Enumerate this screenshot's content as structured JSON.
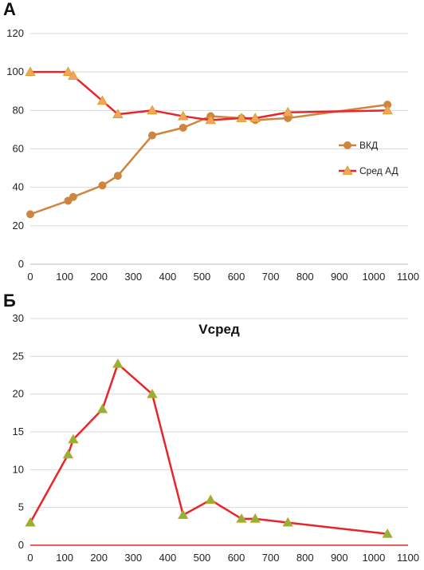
{
  "panel_labels": [
    "А",
    "Б"
  ],
  "colors": {
    "vkd": "#cd853f",
    "sred_ad_line": "#e8262a",
    "sred_ad_marker": "#f4a460",
    "vsred_line": "#e8262a",
    "vsred_marker": "#8db43e"
  },
  "chart_data": [
    {
      "type": "line",
      "title": "",
      "xlabel": "",
      "ylabel": "",
      "xlim": [
        0,
        1100
      ],
      "ylim": [
        0,
        120
      ],
      "x_ticks": [
        0,
        100,
        200,
        300,
        400,
        500,
        600,
        700,
        800,
        900,
        1000,
        1100
      ],
      "y_ticks": [
        0,
        20,
        40,
        60,
        80,
        100,
        120
      ],
      "grid": true,
      "legend_position": "right",
      "series": [
        {
          "name": "ВКД",
          "x": [
            0,
            110,
            125,
            210,
            255,
            355,
            445,
            525,
            615,
            655,
            750,
            1040
          ],
          "y": [
            26,
            33,
            35,
            41,
            46,
            67,
            71,
            77,
            76,
            75,
            76,
            83
          ]
        },
        {
          "name": "Сред АД",
          "x": [
            0,
            110,
            125,
            210,
            255,
            355,
            445,
            525,
            615,
            655,
            750,
            1040
          ],
          "y": [
            100,
            100,
            98,
            85,
            78,
            80,
            77,
            75,
            76,
            76,
            79,
            80
          ]
        }
      ]
    },
    {
      "type": "line",
      "title": "Vсред",
      "xlabel": "",
      "ylabel": "",
      "xlim": [
        0,
        1100
      ],
      "ylim": [
        0,
        30
      ],
      "x_ticks": [
        0,
        100,
        200,
        300,
        400,
        500,
        600,
        700,
        800,
        900,
        1000,
        1100
      ],
      "y_ticks": [
        0,
        5,
        10,
        15,
        20,
        25,
        30
      ],
      "grid": true,
      "series": [
        {
          "x": [
            0,
            110,
            125,
            210,
            255,
            355,
            445,
            525,
            615,
            655,
            750,
            1040
          ],
          "y": [
            3,
            12,
            14,
            18,
            24,
            20,
            4,
            6,
            3.5,
            3.5,
            3,
            1.5
          ]
        }
      ]
    }
  ]
}
